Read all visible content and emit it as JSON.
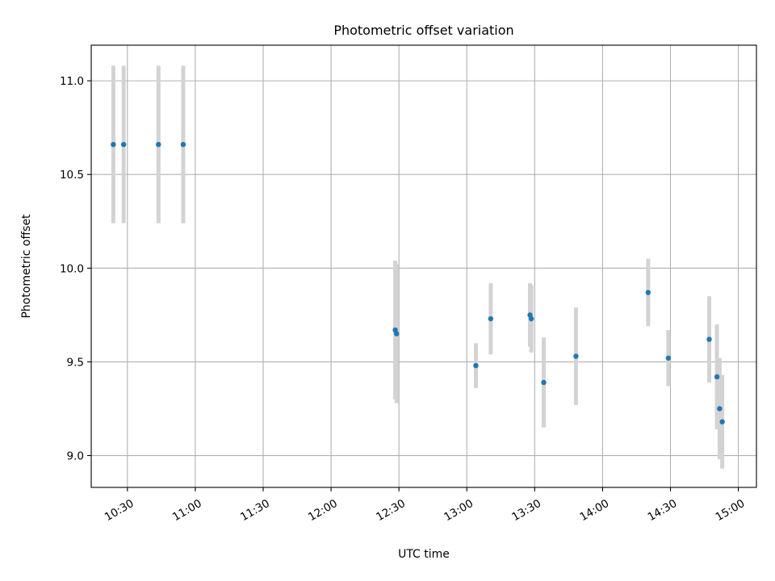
{
  "chart_data": {
    "type": "scatter",
    "title": "Photometric offset variation",
    "xlabel": "UTC time",
    "ylabel": "Photometric offset",
    "x_ticks": [
      "10:30",
      "11:00",
      "11:30",
      "12:00",
      "12:30",
      "13:00",
      "13:30",
      "14:00",
      "14:30",
      "15:00"
    ],
    "y_ticks": [
      "9.0",
      "9.5",
      "10.0",
      "10.5",
      "11.0"
    ],
    "xlim": [
      "10:14",
      "15:08"
    ],
    "ylim": [
      8.83,
      11.19
    ],
    "grid": true,
    "marker_color": "#1f77b4",
    "errorbar_color": "#d3d3d3",
    "points": [
      {
        "t": "10:23:46",
        "y": 10.66,
        "err": 0.42
      },
      {
        "t": "10:28:20",
        "y": 10.66,
        "err": 0.42
      },
      {
        "t": "10:43:43",
        "y": 10.66,
        "err": 0.42
      },
      {
        "t": "10:54:39",
        "y": 10.66,
        "err": 0.42
      },
      {
        "t": "12:28:22",
        "y": 9.67,
        "err": 0.37
      },
      {
        "t": "12:28:57",
        "y": 9.65,
        "err": 0.37
      },
      {
        "t": "13:04:00",
        "y": 9.48,
        "err": 0.12
      },
      {
        "t": "13:10:34",
        "y": 9.73,
        "err": 0.19
      },
      {
        "t": "13:27:56",
        "y": 9.75,
        "err": 0.17
      },
      {
        "t": "13:28:31",
        "y": 9.73,
        "err": 0.18
      },
      {
        "t": "13:34:00",
        "y": 9.39,
        "err": 0.24
      },
      {
        "t": "13:48:14",
        "y": 9.53,
        "err": 0.26
      },
      {
        "t": "14:20:09",
        "y": 9.87,
        "err": 0.18
      },
      {
        "t": "14:29:04",
        "y": 9.52,
        "err": 0.15
      },
      {
        "t": "14:47:08",
        "y": 9.62,
        "err": 0.23
      },
      {
        "t": "14:50:33",
        "y": 9.42,
        "err": 0.28
      },
      {
        "t": "14:51:44",
        "y": 9.25,
        "err": 0.27
      },
      {
        "t": "14:52:53",
        "y": 9.18,
        "err": 0.25
      }
    ]
  }
}
